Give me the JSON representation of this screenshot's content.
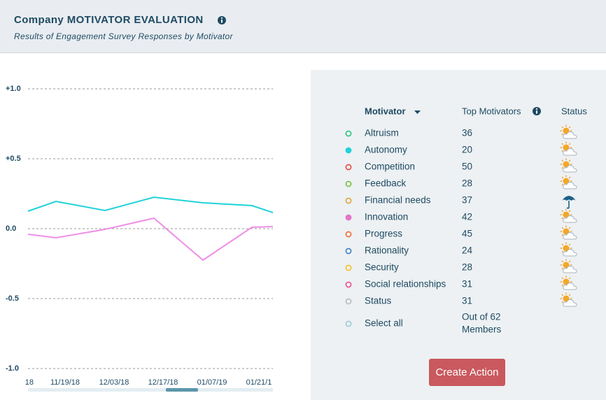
{
  "header": {
    "title": "Company MOTIVATOR EVALUATION",
    "subtitle": "Results of Engagement Survey Responses by Motivator"
  },
  "chart_data": {
    "type": "line",
    "categories": [
      "18",
      "11/19/18",
      "12/03/18",
      "12/17/18",
      "01/07/19",
      "01/21/1",
      null
    ],
    "series": [
      {
        "color": "#1fd3d9",
        "values": [
          0.125,
          0.195,
          0.13,
          0.225,
          0.185,
          0.165,
          0.115
        ]
      },
      {
        "color": "#ee8fe6",
        "values": [
          -0.04,
          -0.065,
          -0.005,
          0.075,
          -0.225,
          0.01,
          0.015
        ]
      }
    ],
    "ylim": [
      -1.0,
      1.0
    ],
    "yticks": [
      {
        "value": 1.0,
        "label": "+1.0"
      },
      {
        "value": 0.5,
        "label": "+0.5"
      },
      {
        "value": 0,
        "label": "0.0"
      },
      {
        "value": -0.5,
        "label": "-0.5"
      },
      {
        "value": -1.0,
        "label": "-1.0"
      }
    ],
    "grid": true
  },
  "panel": {
    "headers": [
      "Motivator",
      "Top Motivators",
      "Status"
    ],
    "rows": [
      {
        "name": "Altruism",
        "count": "36",
        "color": "#2ec27e",
        "filled": false,
        "status": "partly-cloudy"
      },
      {
        "name": "Autonomy",
        "count": "20",
        "color": "#1fd3d9",
        "filled": true,
        "status": "partly-cloudy"
      },
      {
        "name": "Competition",
        "count": "50",
        "color": "#e8483c",
        "filled": false,
        "status": "partly-cloudy"
      },
      {
        "name": "Feedback",
        "count": "28",
        "color": "#76c043",
        "filled": false,
        "status": "partly-cloudy"
      },
      {
        "name": "Financial needs",
        "count": "37",
        "color": "#e2a23a",
        "filled": false,
        "status": "rain"
      },
      {
        "name": "Innovation",
        "count": "42",
        "color": "#e473cc",
        "filled": true,
        "status": "partly-cloudy"
      },
      {
        "name": "Progress",
        "count": "45",
        "color": "#f26b32",
        "filled": false,
        "status": "partly-cloudy"
      },
      {
        "name": "Rationality",
        "count": "24",
        "color": "#3a80c2",
        "filled": false,
        "status": "partly-cloudy"
      },
      {
        "name": "Security",
        "count": "28",
        "color": "#f2c122",
        "filled": false,
        "status": "partly-cloudy"
      },
      {
        "name": "Social relationships",
        "count": "31",
        "color": "#ec4f8c",
        "filled": false,
        "status": "partly-cloudy"
      },
      {
        "name": "Status",
        "count": "31",
        "color": "#bbbbbb",
        "filled": false,
        "status": "partly-cloudy"
      }
    ],
    "select_all": {
      "label": "Select all",
      "color": "#9ccad9",
      "note": [
        "Out of 62",
        "Members"
      ]
    },
    "button": "Create Action"
  }
}
